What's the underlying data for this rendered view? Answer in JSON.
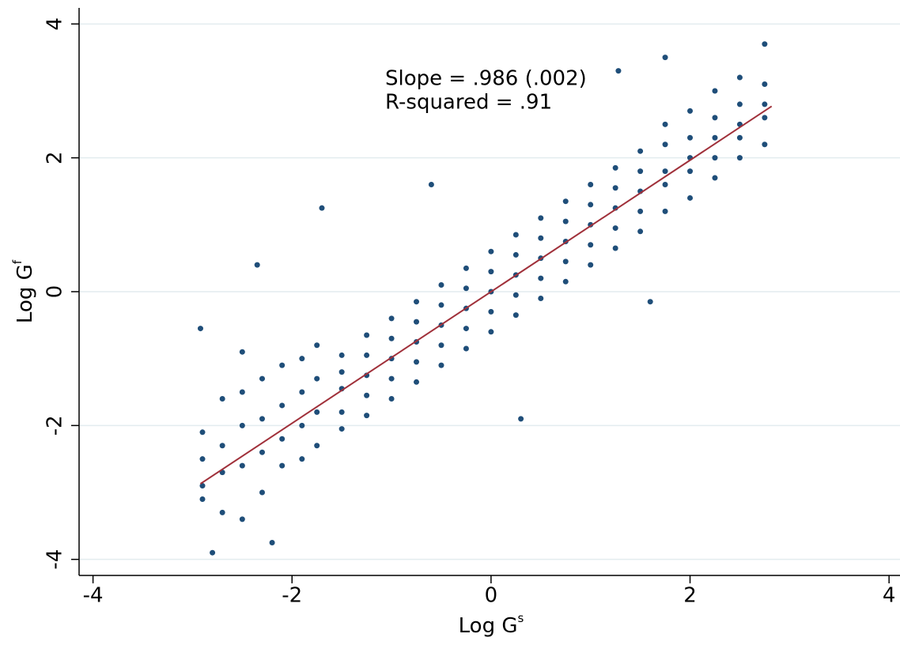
{
  "chart_data": {
    "type": "scatter",
    "xlabel": "Log G",
    "xlabel_superscript": "s",
    "ylabel": "Log G",
    "ylabel_superscript": "f",
    "annotations": [
      "Slope = .986 (.002)",
      "R-squared = .91"
    ],
    "xlim": [
      -4.14,
      4.11
    ],
    "ylim": [
      -4.24,
      4.24
    ],
    "xticks": [
      -4,
      -2,
      0,
      2,
      4
    ],
    "yticks": [
      -4,
      -2,
      0,
      2,
      4
    ],
    "grid": true,
    "color": "#1f4e79",
    "x": [
      -1.5,
      -1.5,
      -1.5,
      -1.5,
      -1.5,
      -1.25,
      -1.25,
      -1.25,
      -1.25,
      -1.25,
      -1,
      -1,
      -1,
      -1,
      -1,
      -0.75,
      -0.75,
      -0.75,
      -0.75,
      -0.75,
      -0.5,
      -0.5,
      -0.5,
      -0.5,
      -0.5,
      -0.25,
      -0.25,
      -0.25,
      -0.25,
      -0.25,
      0,
      0,
      0,
      0,
      0,
      0.25,
      0.25,
      0.25,
      0.25,
      0.25,
      0.5,
      0.5,
      0.5,
      0.5,
      0.5,
      0.75,
      0.75,
      0.75,
      0.75,
      0.75,
      1,
      1,
      1,
      1,
      1,
      1.25,
      1.25,
      1.25,
      1.25,
      1.25,
      1.5,
      1.5,
      1.5,
      1.5,
      1.5,
      -2.9,
      -2.9,
      -2.9,
      -2.9,
      -2.92,
      -2.7,
      -2.7,
      -2.7,
      -2.7,
      -2.5,
      -2.5,
      -2.5,
      -2.5,
      -2.5,
      -2.3,
      -2.3,
      -2.3,
      -2.3,
      -2.1,
      -2.1,
      -2.1,
      -2.1,
      -2.2,
      -1.9,
      -1.9,
      -1.9,
      -1.9,
      -1.75,
      -1.75,
      -1.75,
      -1.75,
      -1.7,
      1.75,
      1.75,
      1.75,
      1.75,
      1.75,
      2,
      2,
      2,
      2,
      2,
      2.25,
      2.25,
      2.25,
      2.25,
      2.25,
      2.5,
      2.5,
      2.5,
      2.5,
      2.5,
      2.75,
      2.75,
      2.75,
      2.75,
      2.75,
      -2.35,
      -0.6,
      0.3,
      1.6,
      1.75,
      -2.8,
      1.28
    ],
    "y": [
      -2.05,
      -1.8,
      -1.45,
      -1.2,
      -0.95,
      -1.85,
      -1.55,
      -1.25,
      -0.95,
      -0.65,
      -1.6,
      -1.3,
      -1,
      -0.7,
      -0.4,
      -1.35,
      -1.05,
      -0.75,
      -0.45,
      -0.15,
      -1.1,
      -0.8,
      -0.5,
      -0.2,
      0.1,
      -0.85,
      -0.55,
      -0.25,
      0.05,
      0.35,
      -0.6,
      -0.3,
      0,
      0.3,
      0.6,
      -0.35,
      -0.05,
      0.25,
      0.55,
      0.85,
      -0.1,
      0.2,
      0.5,
      0.8,
      1.1,
      0.15,
      0.45,
      0.75,
      1.05,
      1.35,
      0.4,
      0.7,
      1,
      1.3,
      1.6,
      0.65,
      0.95,
      1.25,
      1.55,
      1.85,
      0.9,
      1.2,
      1.5,
      1.8,
      2.1,
      -2.1,
      -2.5,
      -2.9,
      -3.1,
      -0.55,
      -1.6,
      -2.3,
      -2.7,
      -3.3,
      -1.5,
      -2,
      -2.6,
      -3.4,
      -0.9,
      -1.3,
      -1.9,
      -2.4,
      -3,
      -1.1,
      -1.7,
      -2.2,
      -2.6,
      -3.75,
      -1,
      -1.5,
      -2,
      -2.5,
      -0.8,
      -1.3,
      -1.8,
      -2.3,
      1.25,
      1.2,
      1.6,
      1.8,
      2.2,
      2.5,
      1.4,
      1.8,
      2,
      2.3,
      2.7,
      1.7,
      2,
      2.3,
      2.6,
      3,
      2,
      2.3,
      2.5,
      2.8,
      3.2,
      2.2,
      2.6,
      2.8,
      3.1,
      3.7,
      0.4,
      1.6,
      -1.9,
      -0.15,
      3.5,
      -3.9,
      3.3
    ],
    "fit": {
      "x": [
        -2.92,
        2.82
      ],
      "y": [
        -2.87,
        2.77
      ],
      "color": "#a0303a"
    }
  }
}
